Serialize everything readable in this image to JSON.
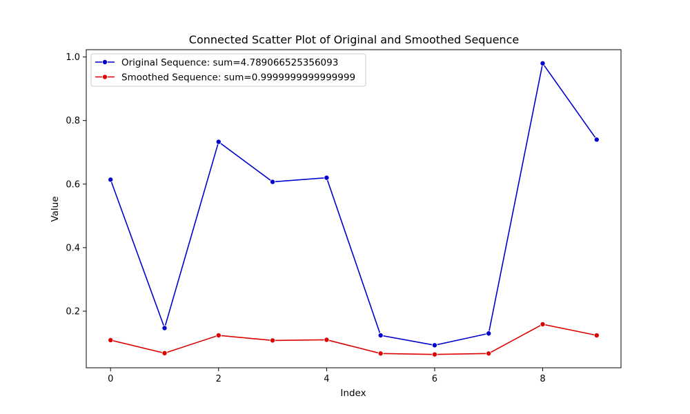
{
  "chart_data": {
    "type": "line",
    "title": "Connected Scatter Plot of Original and Smoothed Sequence",
    "xlabel": "Index",
    "ylabel": "Value",
    "xlim": [
      -0.45,
      9.45
    ],
    "ylim": [
      0.022,
      1.023
    ],
    "xticks": [
      0,
      2,
      4,
      6,
      8
    ],
    "yticks": [
      0.2,
      0.4,
      0.6,
      0.8,
      1.0
    ],
    "grid": false,
    "legend_position": "top-left",
    "x": [
      0,
      1,
      2,
      3,
      4,
      5,
      6,
      7,
      8,
      9
    ],
    "series": [
      {
        "name": "Original Sequence: sum=4.789066525356093",
        "color": "#0000cc",
        "values": [
          0.614,
          0.147,
          0.733,
          0.607,
          0.62,
          0.124,
          0.093,
          0.13,
          0.98,
          0.74
        ]
      },
      {
        "name": "Smoothed Sequence: sum=0.9999999999999999",
        "color": "#dd0000",
        "values": [
          0.109,
          0.068,
          0.124,
          0.108,
          0.11,
          0.067,
          0.064,
          0.067,
          0.159,
          0.124
        ]
      }
    ]
  }
}
